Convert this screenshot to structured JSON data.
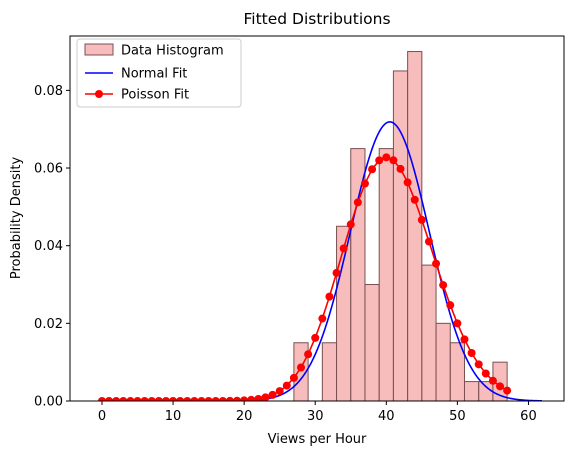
{
  "chart_data": {
    "type": "bar",
    "title": "Fitted Distributions",
    "xlabel": "Views per Hour",
    "ylabel": "Probability Density",
    "xlim": [
      -4.5,
      65
    ],
    "ylim": [
      0,
      0.094
    ],
    "x_ticks": [
      0,
      10,
      20,
      30,
      40,
      50,
      60
    ],
    "y_ticks": [
      0.0,
      0.02,
      0.04,
      0.06,
      0.08
    ],
    "y_tick_labels": [
      "0.00",
      "0.02",
      "0.04",
      "0.06",
      "0.08"
    ],
    "grid": false,
    "legend_position": "top-left",
    "histogram": {
      "name": "Data Histogram",
      "color": "#f4a6a6",
      "edge_color": "#7a5050",
      "bin_width": 2,
      "bin_starts": [
        27,
        29,
        31,
        33,
        35,
        37,
        39,
        41,
        43,
        45,
        47,
        49,
        51,
        53,
        55
      ],
      "values": [
        0.015,
        0.0,
        0.015,
        0.045,
        0.065,
        0.03,
        0.065,
        0.085,
        0.09,
        0.035,
        0.02,
        0.015,
        0.005,
        0.005,
        0.01
      ]
    },
    "series": [
      {
        "name": "Normal Fit",
        "color": "#0000ff",
        "line_type": "line",
        "mean": 40.5,
        "std": 5.55,
        "x_range": [
          0,
          62
        ]
      },
      {
        "name": "Poisson Fit",
        "color": "#ff0000",
        "line_type": "line-marker",
        "lambda": 40.5,
        "x": [
          0,
          1,
          2,
          3,
          4,
          5,
          6,
          7,
          8,
          9,
          10,
          11,
          12,
          13,
          14,
          15,
          16,
          17,
          18,
          19,
          20,
          21,
          22,
          23,
          24,
          25,
          26,
          27,
          28,
          29,
          30,
          31,
          32,
          33,
          34,
          35,
          36,
          37,
          38,
          39,
          40,
          41,
          42,
          43,
          44,
          45,
          46,
          47,
          48,
          49,
          50,
          51,
          52,
          53,
          54,
          55,
          56,
          57
        ]
      }
    ]
  }
}
